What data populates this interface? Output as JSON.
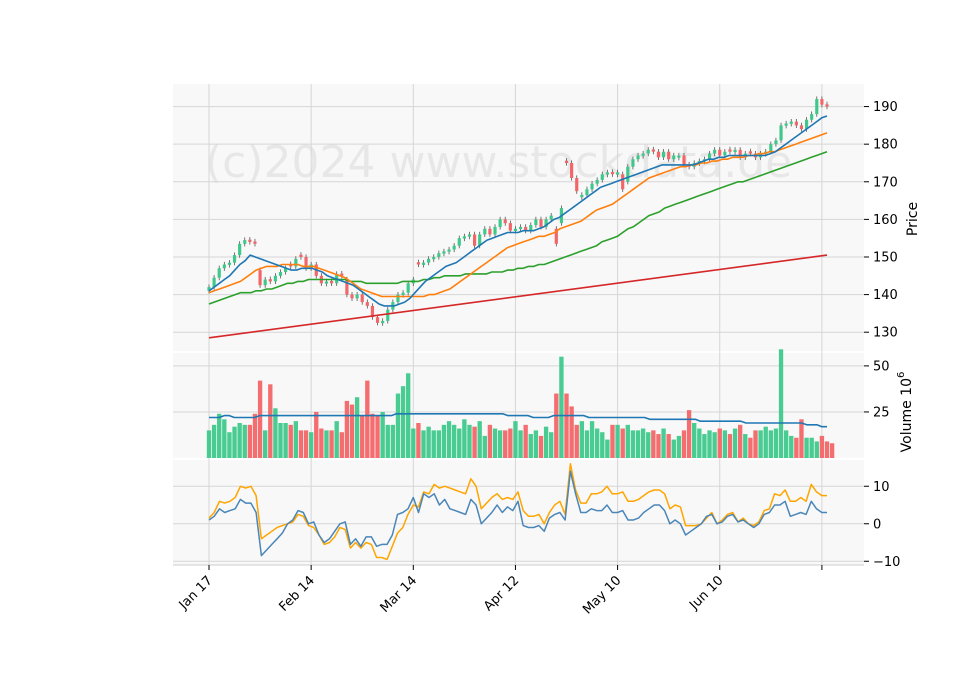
{
  "watermark": "(c)2024 www.stockdata.de",
  "colors": {
    "up": "#3ec98b",
    "down": "#f36567",
    "ma_fast": "#1f77b4",
    "ma_mid": "#ff7f0e",
    "ma_slow": "#2ca02c",
    "ma_long": "#d62728",
    "vol_ma": "#1f77b4",
    "osc_a": "#4a86b8",
    "osc_b": "#ffa500"
  },
  "chart_data": [
    {
      "type": "candlestick",
      "panel": "price",
      "ylabel": "Price",
      "ylim": [
        125,
        196
      ],
      "yticks": [
        130,
        140,
        150,
        160,
        170,
        180,
        190
      ],
      "xticks": [
        {
          "label": "Jan 17",
          "index": 0
        },
        {
          "label": "Feb 14",
          "index": 20
        },
        {
          "label": "Mar 14",
          "index": 40
        },
        {
          "label": "Apr 12",
          "index": 60
        },
        {
          "label": "May 10",
          "index": 80
        },
        {
          "label": "Jun 10",
          "index": 100
        },
        {
          "label": "",
          "index": 120
        }
      ],
      "close": [
        142,
        144.5,
        147,
        148,
        148.5,
        150.5,
        153.5,
        154.5,
        154,
        153.5,
        142.5,
        144,
        143.5,
        145,
        146,
        147,
        147.5,
        149.5,
        150,
        147,
        148,
        145,
        143,
        143.5,
        143,
        145.5,
        145,
        140,
        139,
        140,
        138,
        137,
        134,
        132.5,
        133,
        136,
        138,
        140,
        140.5,
        143,
        144,
        148,
        148.5,
        149.5,
        150,
        151,
        151.5,
        152,
        153,
        155,
        155.5,
        156,
        153,
        156,
        157.5,
        156,
        158,
        160,
        159,
        157,
        157.5,
        158,
        157,
        158.5,
        160,
        158,
        160,
        161,
        153.5,
        163,
        175,
        171,
        167.5,
        166.5,
        168,
        169.5,
        170.5,
        172,
        172.5,
        172,
        172.5,
        168,
        174,
        176,
        177,
        177.5,
        178.5,
        178,
        176.5,
        178,
        176,
        177,
        177,
        174.5,
        174,
        175,
        175.5,
        176,
        177.5,
        178.5,
        177,
        178,
        178,
        178.5,
        176.5,
        177.5,
        177.5,
        176.5,
        177.5,
        178,
        180,
        181,
        185,
        185.5,
        186,
        185,
        184,
        186.5,
        188,
        192,
        190.5,
        190
      ],
      "direction": [
        "u",
        "u",
        "u",
        "u",
        "u",
        "u",
        "u",
        "u",
        "d",
        "d",
        "d",
        "u",
        "d",
        "u",
        "u",
        "u",
        "d",
        "u",
        "d",
        "d",
        "u",
        "d",
        "d",
        "u",
        "d",
        "u",
        "d",
        "d",
        "d",
        "u",
        "d",
        "d",
        "d",
        "d",
        "u",
        "u",
        "u",
        "u",
        "u",
        "u",
        "u",
        "d",
        "u",
        "u",
        "u",
        "u",
        "u",
        "u",
        "u",
        "u",
        "u",
        "u",
        "d",
        "u",
        "u",
        "d",
        "u",
        "u",
        "d",
        "d",
        "u",
        "u",
        "d",
        "u",
        "u",
        "d",
        "u",
        "u",
        "d",
        "u",
        "d",
        "d",
        "d",
        "u",
        "u",
        "u",
        "u",
        "u",
        "u",
        "d",
        "u",
        "d",
        "u",
        "u",
        "u",
        "u",
        "u",
        "d",
        "d",
        "u",
        "d",
        "u",
        "u",
        "d",
        "d",
        "u",
        "u",
        "u",
        "u",
        "u",
        "d",
        "u",
        "d",
        "u",
        "d",
        "u",
        "d",
        "d",
        "u",
        "u",
        "u",
        "u",
        "u",
        "u",
        "u",
        "d",
        "d",
        "u",
        "u",
        "u",
        "d",
        "d"
      ],
      "ma_fast": [
        141,
        142,
        143,
        144,
        145,
        146.5,
        148,
        149,
        150.5,
        150,
        149.5,
        149,
        148.5,
        148,
        147.5,
        147,
        146.5,
        146.5,
        147,
        147,
        147,
        146.5,
        146,
        145,
        144.5,
        144,
        143.5,
        143,
        142.5,
        141.5,
        140.5,
        139.5,
        138.5,
        137.5,
        137,
        137,
        137,
        137.5,
        138,
        139,
        140.5,
        142,
        143.5,
        144.5,
        145.5,
        146.5,
        147.5,
        148,
        148.5,
        149.5,
        150.5,
        151.5,
        152.5,
        153.5,
        154.5,
        155,
        155.5,
        156,
        156.5,
        156.5,
        156.5,
        157,
        157,
        157,
        157.5,
        158,
        159,
        160,
        160.5,
        161.5,
        162.5,
        163.5,
        164.5,
        165.5,
        166.5,
        167.5,
        168.5,
        169,
        169.5,
        170,
        170.5,
        171,
        171.5,
        172,
        172.5,
        173,
        173.5,
        174,
        174.5,
        174.5,
        174.5,
        174.5,
        174.5,
        174.5,
        174.5,
        175,
        175.5,
        176,
        176,
        176.5,
        176.5,
        177,
        177,
        177,
        177,
        177,
        177,
        177,
        177,
        177.5,
        178,
        179,
        180,
        181,
        182,
        183,
        184,
        185,
        186,
        187,
        187.5
      ],
      "ma_mid": [
        140.5,
        141,
        141.5,
        142,
        142.5,
        143,
        143.5,
        144.5,
        145.5,
        146.5,
        147,
        147.5,
        147.5,
        147.5,
        148,
        148,
        148,
        148,
        147.5,
        147.5,
        147.5,
        147,
        146.5,
        146,
        145.5,
        145,
        144.5,
        143.5,
        142.5,
        141.5,
        141,
        140.5,
        140,
        139.5,
        139.5,
        139.5,
        139.5,
        139.5,
        139.5,
        139.5,
        139.5,
        139.5,
        140,
        140,
        140.5,
        141,
        141.5,
        142.5,
        143.5,
        144.5,
        145.5,
        146.5,
        147.5,
        148.5,
        149.5,
        150.5,
        151.5,
        152.5,
        153,
        153.5,
        154,
        154.5,
        155,
        155.5,
        155.5,
        156,
        156.5,
        157.5,
        158,
        158.5,
        159,
        159.5,
        160.5,
        161.5,
        162.5,
        163,
        163.5,
        164,
        165,
        166,
        167,
        168,
        169,
        170,
        171,
        171.5,
        172,
        172.5,
        173,
        173.5,
        174,
        174,
        174.5,
        174.5,
        175,
        175,
        175.5,
        175.5,
        176,
        176,
        176.5,
        176.5,
        176.5,
        177,
        177,
        177.5,
        177.5,
        178,
        178,
        178.5,
        179,
        179.5,
        180,
        180.5,
        181,
        181.5,
        182,
        182.5,
        183
      ],
      "ma_slow": [
        137.5,
        138,
        138.5,
        139,
        139.5,
        140,
        140.5,
        140.5,
        140.5,
        141,
        141,
        141.5,
        141.5,
        142,
        142.5,
        143,
        143,
        143.5,
        143.5,
        144,
        144,
        144,
        144,
        144,
        144,
        144,
        144,
        143.5,
        143.5,
        143.5,
        143,
        143,
        143,
        143,
        143,
        143,
        143,
        143.5,
        143.5,
        143.5,
        143.5,
        144,
        144,
        144.5,
        144.5,
        145,
        145,
        145,
        145,
        145.5,
        145.5,
        145.5,
        145.5,
        145.5,
        146,
        146,
        146,
        146.5,
        146.5,
        147,
        147,
        147.5,
        147.5,
        148,
        148,
        148.5,
        149,
        149.5,
        150,
        150.5,
        151,
        151.5,
        152,
        152.5,
        153,
        154,
        154.5,
        155,
        155.5,
        156.5,
        157.5,
        158,
        159,
        160,
        161,
        161.5,
        162,
        163,
        163.5,
        164,
        164.5,
        165,
        165.5,
        166,
        166.5,
        167,
        167.5,
        168,
        168.5,
        169,
        169.5,
        170,
        170,
        170.5,
        171,
        171.5,
        172,
        172.5,
        173,
        173.5,
        174,
        174.5,
        175,
        175.5,
        176,
        176.5,
        177,
        177.5,
        178
      ],
      "ma_long": [
        128.5,
        150.5
      ]
    },
    {
      "type": "bar",
      "panel": "volume",
      "ylabel": "Volume $10^6$",
      "ylim": [
        0,
        57
      ],
      "yticks": [
        25,
        50
      ],
      "values": [
        15,
        18,
        24,
        21,
        14,
        17,
        19,
        18,
        18,
        24,
        42,
        15,
        40,
        27,
        19,
        19,
        18,
        20,
        15,
        15,
        14,
        25,
        16,
        15,
        15,
        20,
        14,
        31,
        29,
        33,
        23,
        42,
        24,
        23,
        25,
        18,
        18,
        35,
        39,
        46,
        16,
        19,
        15,
        17,
        15,
        15,
        18,
        20,
        18,
        16,
        21,
        18,
        17,
        20,
        12,
        18,
        16,
        15,
        15,
        16,
        20,
        15,
        18,
        13,
        15,
        12,
        17,
        14,
        35,
        55,
        35,
        28,
        18,
        20,
        15,
        20,
        16,
        14,
        10,
        18,
        18,
        16,
        18,
        15,
        15,
        16,
        14,
        15,
        13,
        16,
        13,
        10,
        12,
        15,
        26,
        19,
        16,
        13,
        15,
        14,
        16,
        15,
        13,
        16,
        18,
        13,
        11,
        15,
        15,
        17,
        15,
        16,
        59,
        15,
        12,
        11,
        21,
        11,
        11,
        9,
        12,
        9,
        8
      ],
      "ma": [
        22,
        22,
        22,
        23,
        23,
        22,
        22,
        22,
        22,
        22,
        23,
        23,
        23,
        23,
        23,
        23,
        23,
        23,
        23,
        23,
        23,
        23,
        23,
        23,
        23,
        23,
        23,
        23,
        23,
        23,
        23,
        23,
        23,
        23,
        23,
        23,
        23,
        24,
        24,
        24,
        24,
        24,
        24,
        24,
        24,
        24,
        24,
        24,
        24,
        24,
        24,
        24,
        24,
        24,
        24,
        24,
        24,
        24,
        24,
        23,
        23,
        23,
        23,
        23,
        22,
        22,
        22,
        22,
        23,
        23,
        23,
        23,
        23,
        23,
        23,
        22,
        22,
        22,
        22,
        22,
        22,
        22,
        22,
        22,
        22,
        22,
        22,
        21,
        21,
        21,
        21,
        21,
        21,
        21,
        21,
        21,
        21,
        20,
        20,
        20,
        20,
        20,
        20,
        20,
        20,
        20,
        19,
        19,
        19,
        19,
        19,
        19,
        19,
        19,
        19,
        19,
        19,
        19,
        18,
        18,
        18,
        17,
        17
      ]
    },
    {
      "type": "line",
      "panel": "oscillator",
      "ylim": [
        -11,
        17
      ],
      "yticks": [
        -10,
        0,
        10
      ],
      "series": [
        {
          "values": [
            1,
            2,
            4,
            3,
            3.5,
            4,
            6.5,
            5.5,
            5.5,
            3,
            -8.5,
            -7,
            -5.5,
            -4,
            -2.5,
            0,
            1,
            3.5,
            3,
            0,
            0.5,
            -3,
            -5,
            -4,
            -2,
            0,
            0.5,
            -5.5,
            -4,
            -6,
            -3.5,
            -3.5,
            -6,
            -5.5,
            -5.5,
            -3,
            2.5,
            3,
            4,
            7,
            3,
            8,
            7,
            8,
            5,
            6.5,
            4,
            3.5,
            3,
            2.5,
            6.5,
            5,
            0,
            1.5,
            3,
            5,
            3,
            4.5,
            3.5,
            6,
            -0.5,
            -1,
            -1,
            -0.5,
            -2,
            1.5,
            2.5,
            3,
            1,
            14,
            8,
            3,
            3,
            4,
            3.5,
            3.5,
            5,
            3,
            3,
            3.5,
            1,
            1,
            1.5,
            3,
            4,
            5,
            5,
            3.5,
            0,
            1,
            0,
            -3,
            -2,
            -1,
            0,
            2,
            2.5,
            0,
            0.5,
            2,
            2.5,
            0.5,
            1,
            0,
            -1,
            0,
            2.5,
            3,
            5,
            5,
            6,
            2,
            2.5,
            3,
            2.5,
            6,
            4,
            3,
            3
          ]
        },
        {
          "values": [
            1.5,
            3,
            6,
            5.5,
            6,
            7,
            10,
            9.5,
            10,
            7.5,
            -4,
            -3,
            -2,
            -1,
            -0.5,
            0,
            0.5,
            2.5,
            2,
            -0.5,
            -1,
            -3,
            -5.5,
            -5,
            -3.5,
            -1,
            -1.5,
            -6.5,
            -5,
            -6.5,
            -5,
            -5.5,
            -9,
            -9,
            -9.5,
            -6,
            -2.5,
            -1,
            2.5,
            5,
            4.5,
            8.5,
            8,
            10.5,
            9.5,
            10,
            9.5,
            9,
            8.5,
            8,
            12,
            10,
            4,
            5.5,
            7,
            8,
            6.5,
            7,
            6.5,
            8.5,
            3.5,
            2,
            2,
            2.5,
            0,
            3,
            5,
            6,
            2.5,
            16,
            9,
            5.5,
            5.5,
            8,
            8,
            8.5,
            10,
            8,
            8,
            8.5,
            6,
            6,
            6.5,
            7.5,
            8.5,
            9,
            9,
            8,
            4,
            5,
            4.5,
            -0.5,
            -0.5,
            -0.5,
            0,
            1.5,
            3,
            0,
            1,
            2.5,
            3,
            0.5,
            1.5,
            0,
            -0.5,
            0.5,
            3.5,
            4,
            8,
            7.5,
            9,
            6,
            6,
            7,
            6,
            10.5,
            8.5,
            7.5,
            7.5
          ]
        }
      ]
    }
  ]
}
